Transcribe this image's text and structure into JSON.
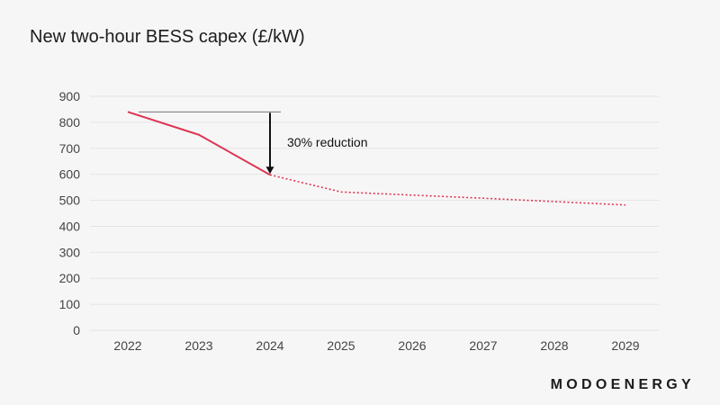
{
  "title": "New two-hour BESS capex (£/kW)",
  "brand": "MODOENERGY",
  "colors": {
    "line": "#dc3654",
    "grid": "#e6e4e4",
    "arrow": "#111111",
    "reference": "#777777"
  },
  "chart_data": {
    "type": "line",
    "title": "New two-hour BESS capex (£/kW)",
    "xlabel": "",
    "ylabel": "",
    "categories": [
      "2022",
      "2023",
      "2024",
      "2025",
      "2026",
      "2027",
      "2028",
      "2029"
    ],
    "yticks": [
      "0",
      "100",
      "200",
      "300",
      "400",
      "500",
      "600",
      "700",
      "800",
      "900"
    ],
    "ylim": [
      0,
      900
    ],
    "grid": "horizontal",
    "series": [
      {
        "values": [
          840,
          752,
          598,
          532,
          520,
          508,
          495,
          482
        ],
        "solid_until_index": 2,
        "forecast_style": "dotted"
      }
    ],
    "annotation": {
      "text": "30% reduction",
      "reference_value": 840,
      "arrow_from": 840,
      "arrow_to": 598,
      "at_category": "2024"
    }
  }
}
